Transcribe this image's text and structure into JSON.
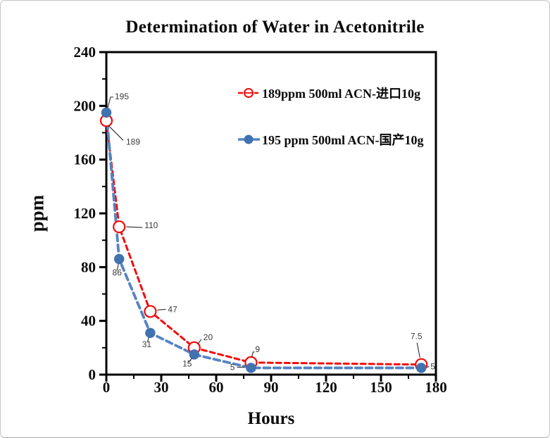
{
  "chart_data": {
    "type": "line",
    "title": "Determination of Water in Acetonitrile",
    "xlabel": "Hours",
    "ylabel": "ppm",
    "xlim": [
      0,
      180
    ],
    "ylim": [
      0,
      240
    ],
    "x_ticks": [
      0,
      30,
      60,
      90,
      120,
      150,
      180
    ],
    "x_minor_ticks": [
      15,
      45,
      75,
      105,
      135,
      165
    ],
    "y_ticks": [
      0,
      40,
      80,
      120,
      160,
      200,
      240
    ],
    "y_minor_ticks": [
      20,
      60,
      100,
      140,
      180,
      220
    ],
    "grid": false,
    "legend_position": "upper-right-inside",
    "axis_color": "#000000",
    "label_leader_color": "#2b2b2b",
    "series": [
      {
        "name": "189ppm  500ml ACN-进口10g",
        "color": "#f40b0b",
        "marker": "open-circle",
        "marker_color": "#f40b0b",
        "line_style": "dashed",
        "points": [
          {
            "x": 0,
            "y": 189,
            "label": "189",
            "lo": [
              28,
              34
            ],
            "anchor": "start",
            "leader": [
              [
                3,
                7
              ],
              [
                24,
                28
              ]
            ]
          },
          {
            "x": 7,
            "y": 110,
            "label": "110",
            "lo": [
              36,
              2
            ],
            "anchor": "start",
            "leader": [
              [
                10,
                0
              ],
              [
                33,
                1
              ]
            ]
          },
          {
            "x": 24,
            "y": 47,
            "label": "47",
            "lo": [
              25,
              1
            ],
            "anchor": "start",
            "leader": [
              [
                10,
                -2
              ],
              [
                22,
                -3
              ]
            ]
          },
          {
            "x": 48,
            "y": 20,
            "label": "20",
            "lo": [
              13,
              -11
            ],
            "anchor": "start",
            "leader": [
              [
                5,
                -5
              ],
              [
                10,
                -12
              ]
            ]
          },
          {
            "x": 79,
            "y": 9,
            "label": "9",
            "lo": [
              6,
              -15
            ],
            "anchor": "start",
            "leader": [
              [
                1,
                -7
              ],
              [
                3,
                -15
              ],
              [
                5,
                -15
              ]
            ]
          },
          {
            "x": 172,
            "y": 7.5,
            "label": "7.5",
            "lo": [
              -7,
              -36
            ],
            "anchor": "middle",
            "leader": [
              [
                -2,
                -10
              ],
              [
                -6,
                -31
              ]
            ]
          }
        ]
      },
      {
        "name": "195 ppm 500ml ACN-国产10g",
        "color": "#5584c4",
        "marker": "filled-circle",
        "marker_color": "#4172b0",
        "line_style": "dashed",
        "points": [
          {
            "x": 0,
            "y": 195,
            "label": "195",
            "lo": [
              12,
              -19
            ],
            "anchor": "start",
            "leader": [
              [
                2,
                -7
              ],
              [
                6,
                -22
              ],
              [
                10,
                -22
              ]
            ]
          },
          {
            "x": 7,
            "y": 86,
            "label": "86",
            "lo": [
              -3,
              23
            ],
            "anchor": "middle",
            "leader": [
              [
                -1,
                7
              ],
              [
                -3,
                16
              ]
            ]
          },
          {
            "x": 24,
            "y": 31,
            "label": "31",
            "lo": [
              -5,
              20
            ],
            "anchor": "middle",
            "leader": [
              [
                -2,
                6
              ],
              [
                -4,
                13
              ]
            ]
          },
          {
            "x": 48,
            "y": 15,
            "label": "15",
            "lo": [
              -10,
              17
            ],
            "anchor": "middle",
            "leader": [
              [
                -3,
                5
              ],
              [
                -8,
                11
              ]
            ]
          },
          {
            "x": 79,
            "y": 5,
            "label": "5",
            "lo": [
              -23,
              3
            ],
            "anchor": "end",
            "leader": [
              [
                -9,
                -1
              ],
              [
                -20,
                -1
              ]
            ]
          },
          {
            "x": 172,
            "y": 5,
            "label": "5",
            "lo": [
              13,
              2
            ],
            "anchor": "start",
            "leader": [
              [
                8,
                -1
              ],
              [
                11,
                -2
              ]
            ]
          }
        ]
      }
    ]
  }
}
